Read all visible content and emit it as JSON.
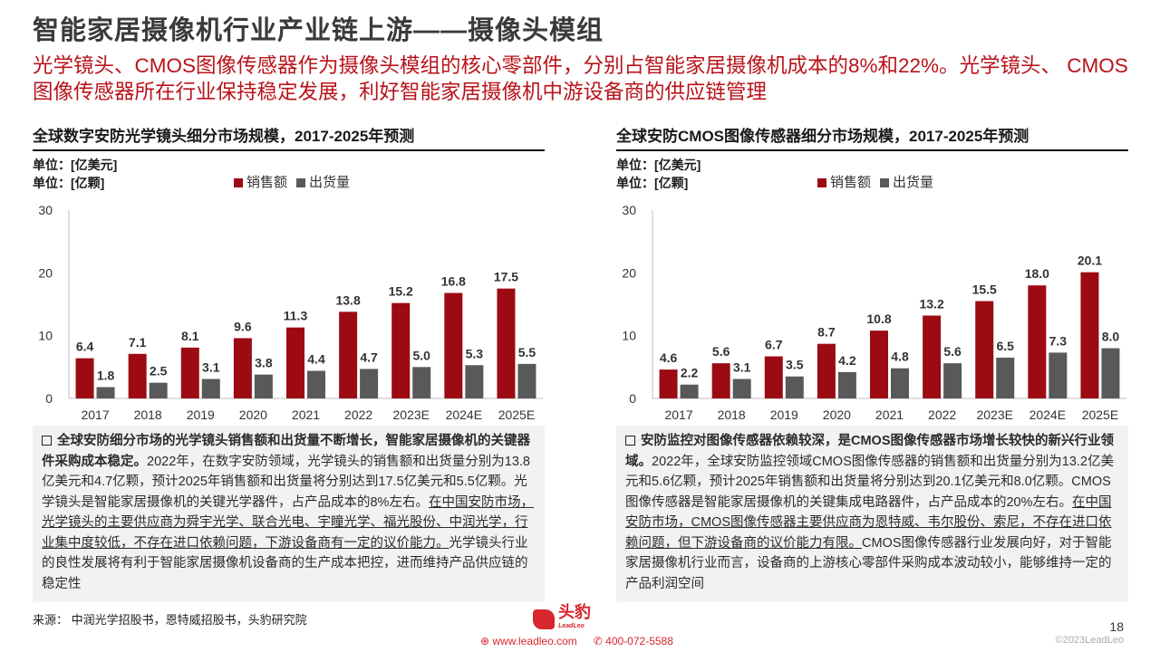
{
  "page": {
    "title": "智能家居摄像机行业产业链上游——摄像头模组",
    "subtitle": "光学镜头、CMOS图像传感器作为摄像头模组的核心零部件，分别占智能家居摄像机成本的8%和22%。光学镜头、 CMOS图像传感器所在行业保持稳定发展，利好智能家居摄像机中游设备商的供应链管理",
    "source": "来源： 中润光学招股书，恩特威招股书，头豹研究院",
    "page_number": "18",
    "copyright": "©2023LeadLeo",
    "logo_name": "头豹",
    "logo_en": "LeadLeo",
    "website": "www.leadleo.com",
    "phone": "400-072-5588"
  },
  "left": {
    "chart_title": "全球数字安防光学镜头细分市场规模，2017-2025年预测",
    "unit1": "单位：[亿美元]",
    "unit2": "单位：[亿颗]",
    "legend_sales": "销售额",
    "legend_ship": "出货量",
    "text": {
      "lead": "全球安防细分市场的光学镜头销售额和出货量不断增长，智能家居摄像机的关键器件采购成本稳定。",
      "p1": "2022年，在数字安防领域，光学镜头的销售额和出货量分别为13.8亿美元和4.7亿颗，预计2025年销售额和出货量将分别达到17.5亿美元和5.5亿颗。光学镜头是智能家居摄像机的关键光学器件，占产品成本的8%左右。",
      "u1": "在中国安防市场，光学镜头的主要供应商为舜宇光学、联合光电、宇瞳光学、福光股份、中润光学，行业集中度较低，不存在进口依赖问题，下游设备商有一定的议价能力。",
      "p2": "光学镜头行业的良性发展将有利于智能家居摄像机设备商的生产成本把控，进而维持产品供应链的稳定性"
    }
  },
  "right": {
    "chart_title": "全球安防CMOS图像传感器细分市场规模，2017-2025年预测",
    "unit1": "单位：[亿美元]",
    "unit2": "单位：[亿颗]",
    "legend_sales": "销售额",
    "legend_ship": "出货量",
    "text": {
      "lead": "安防监控对图像传感器依赖较深，是CMOS图像传感器市场增长较快的新兴行业领域。",
      "p1": "2022年，全球安防监控领域CMOS图像传感器的销售额和出货量分别为13.2亿美元和5.6亿颗，预计2025年销售额和出货量将分别达到20.1亿美元和8.0亿颗。CMOS图像传感器是智能家居摄像机的关键集成电路器件，占产品成本的20%左右。",
      "u1": "在中国安防市场，CMOS图像传感器主要供应商为恩特威、韦尔股份、索尼，不存在进口依赖问题，但下游设备商的议价能力有限。",
      "p2": "CMOS图像传感器行业发展向好，对于智能家居摄像机行业而言，设备商的上游核心零部件采购成本波动较小，能够维持一定的产品利润空间"
    }
  },
  "chart_data": [
    {
      "type": "bar",
      "title": "全球数字安防光学镜头细分市场规模，2017-2025年预测",
      "categories": [
        "2017",
        "2018",
        "2019",
        "2020",
        "2021",
        "2022",
        "2023E",
        "2024E",
        "2025E"
      ],
      "series": [
        {
          "name": "销售额",
          "values": [
            6.4,
            7.1,
            8.1,
            9.6,
            11.3,
            13.8,
            15.2,
            16.8,
            17.5
          ],
          "color": "#9c0a12"
        },
        {
          "name": "出货量",
          "values": [
            1.8,
            2.5,
            3.1,
            3.8,
            4.4,
            4.7,
            5.0,
            5.3,
            5.5
          ],
          "color": "#595959"
        }
      ],
      "ylim": [
        0,
        30
      ],
      "yticks": [
        0,
        10,
        20,
        30
      ],
      "legend": "top"
    },
    {
      "type": "bar",
      "title": "全球安防CMOS图像传感器细分市场规模，2017-2025年预测",
      "categories": [
        "2017",
        "2018",
        "2019",
        "2020",
        "2021",
        "2022",
        "2023E",
        "2024E",
        "2025E"
      ],
      "series": [
        {
          "name": "销售额",
          "values": [
            4.6,
            5.6,
            6.7,
            8.7,
            10.8,
            13.2,
            15.5,
            18.0,
            20.1
          ],
          "color": "#9c0a12"
        },
        {
          "name": "出货量",
          "values": [
            2.2,
            3.1,
            3.5,
            4.2,
            4.8,
            5.6,
            6.5,
            7.3,
            8.0
          ],
          "color": "#595959"
        }
      ],
      "ylim": [
        0,
        30
      ],
      "yticks": [
        0,
        10,
        20,
        30
      ],
      "legend": "top"
    }
  ]
}
